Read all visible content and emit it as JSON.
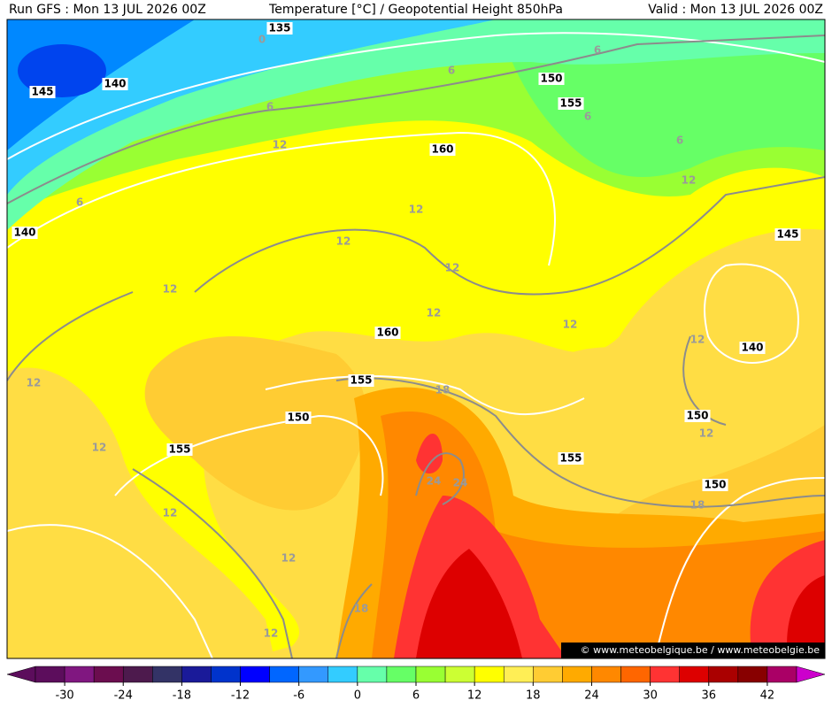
{
  "header": {
    "left": "Run GFS : Mon 13 JUL 2026 00Z",
    "center": "Temperature [°C] / Geopotential Height 850hPa",
    "right": "Valid : Mon 13 JUL 2026 00Z"
  },
  "map": {
    "height_contours": [
      "135",
      "145",
      "140",
      "150",
      "155",
      "160",
      "140",
      "145",
      "160",
      "140",
      "155",
      "150",
      "150",
      "155",
      "155",
      "150"
    ],
    "temperature_contours": [
      "0",
      "6",
      "6",
      "6",
      "6",
      "6",
      "12",
      "6",
      "12",
      "12",
      "12",
      "12",
      "12",
      "12",
      "12",
      "12",
      "12",
      "18",
      "12",
      "12",
      "24",
      "24",
      "12",
      "18",
      "12",
      "18",
      "12"
    ]
  },
  "watermark": "© www.meteobelgique.be / www.meteobelgie.be",
  "colorbar": {
    "ticks": [
      -30,
      -24,
      -18,
      -12,
      -6,
      0,
      6,
      12,
      18,
      24,
      30,
      36,
      42
    ],
    "colors": [
      "#5c0d5c",
      "#801780",
      "#6b0d4f",
      "#4d1a4d",
      "#333366",
      "#1a1a99",
      "#0033cc",
      "#0000ff",
      "#0066ff",
      "#3399ff",
      "#33ccff",
      "#66ffaa",
      "#66ff66",
      "#99ff33",
      "#ccff33",
      "#ffff00",
      "#ffee55",
      "#ffcc33",
      "#ffaa00",
      "#ff8800",
      "#ff6600",
      "#ff3333",
      "#dd0000",
      "#aa0000",
      "#880000",
      "#aa0066"
    ]
  }
}
